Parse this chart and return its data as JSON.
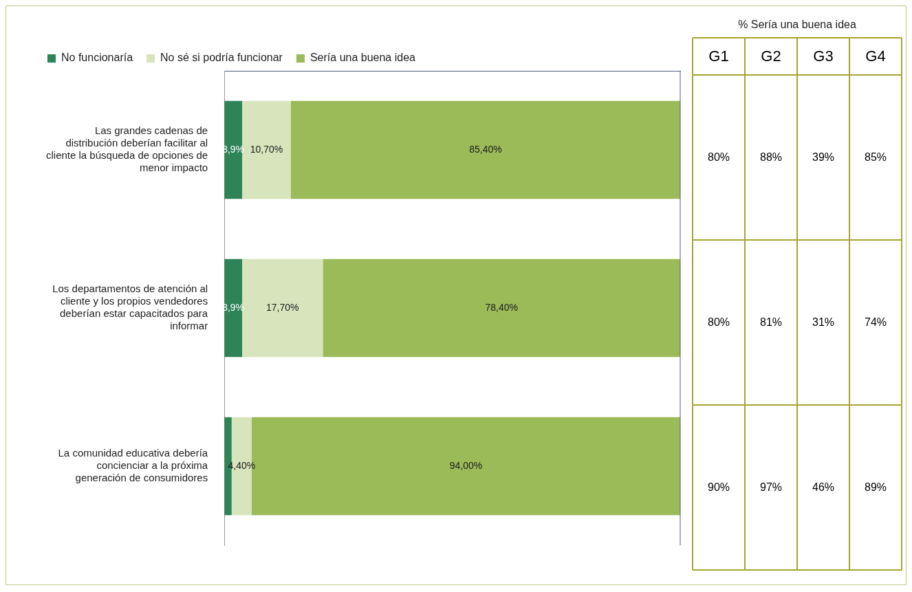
{
  "chart_data": [
    {
      "type": "bar",
      "orientation": "horizontal",
      "stacked": true,
      "legend": "top left",
      "tick_labels": "y",
      "xlim": [
        0,
        100
      ],
      "grid": false,
      "categories": [
        "Las grandes cadenas de distribución deberían facilitar al cliente la búsqueda de opciones de menor impacto",
        "Los departamentos de atención al cliente y los propios vendedores deberían estar capacitados para informar",
        "La comunidad educativa debería concienciar a la próxima generación de consumidores"
      ],
      "series": [
        {
          "name": "No funcionaría",
          "color": "#2e8357",
          "values": [
            3.9,
            3.9,
            1.6
          ],
          "value_labels": [
            "3,9%",
            "3,9%",
            null
          ]
        },
        {
          "name": "No sé si podría funcionar",
          "color": "#d8e4bc",
          "values": [
            10.7,
            17.7,
            4.4
          ],
          "value_labels": [
            "10,70%",
            "17,70%",
            "4,40%"
          ]
        },
        {
          "name": "Sería una buena idea",
          "color": "#9bbb59",
          "values": [
            85.4,
            78.4,
            94.0
          ],
          "value_labels": [
            "85,40%",
            "78,40%",
            "94,00%"
          ]
        }
      ]
    },
    {
      "type": "other",
      "title": "% Sería una buena idea",
      "categories": [
        "G1",
        "G2",
        "G3",
        "G4"
      ],
      "annotations": [
        "80%",
        "88%",
        "39%",
        "85%",
        "80%",
        "81%",
        "31%",
        "74%",
        "90%",
        "97%",
        "46%",
        "89%"
      ]
    }
  ]
}
